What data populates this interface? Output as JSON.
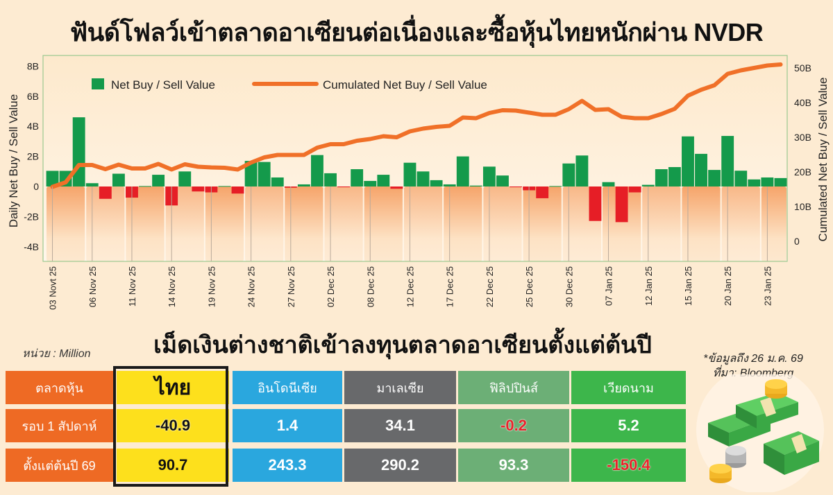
{
  "title": "ฟันด์โฟลว์เข้าตลาดอาเซียนต่อเนื่องและซื้อหุ้นไทยหนักผ่าน NVDR",
  "chart_data": {
    "type": "bar+line",
    "title": "ฟันด์โฟลว์เข้าตลาดอาเซียนต่อเนื่องและซื้อหุ้นไทยหนักผ่าน NVDR",
    "ylabel_left": "Daily Net Buy / Sell Value",
    "ylabel_right": "Cumulated Net Buy / Sell Value",
    "ylim_left": [
      -4,
      8
    ],
    "ylim_right": [
      0,
      50
    ],
    "yticks_left": [
      "-4B",
      "-2B",
      "0",
      "2B",
      "4B",
      "6B",
      "8B"
    ],
    "yticks_left_values": [
      -4,
      -2,
      0,
      2,
      4,
      6,
      8
    ],
    "yticks_right": [
      "0",
      "10B",
      "20B",
      "30B",
      "40B",
      "50B"
    ],
    "yticks_right_values": [
      0,
      10,
      20,
      30,
      40,
      50
    ],
    "legend_placement": "top-left",
    "xtick_labels": [
      "03 Novt 25",
      "06 Nov 25",
      "11 Nov 25",
      "14 Nov 25",
      "19 Nov 25",
      "24 Nov 25",
      "27 Nov 25",
      "02 Dec 25",
      "08 Dec 25",
      "12 Dec 25",
      "17 Dec 25",
      "22 Dec 25",
      "25 Dec 25",
      "30 Dec 25",
      "07 Jan 25",
      "12 Jan 25",
      "15 Jan 25",
      "20 Jan 25",
      "23 Jan 25"
    ],
    "series": [
      {
        "name": "Net Buy / Sell Value",
        "type": "bar",
        "axis": "left",
        "color": "#149a4b",
        "negative_color": "#e61e26",
        "values": [
          1.04,
          1.04,
          4.6,
          0.22,
          -0.82,
          0.85,
          -0.74,
          0.03,
          0.78,
          -1.26,
          1.0,
          -0.33,
          -0.39,
          0.03,
          -0.47,
          1.7,
          1.63,
          0.6,
          -0.08,
          0.14,
          2.09,
          0.88,
          -0.05,
          1.15,
          0.37,
          0.78,
          -0.15,
          1.58,
          1.0,
          0.42,
          0.14,
          2.0,
          0.06,
          1.32,
          0.73,
          -0.05,
          -0.25,
          -0.78,
          0.03,
          1.53,
          2.06,
          -2.29,
          0.29,
          -2.37,
          -0.39,
          0.11,
          1.15,
          1.29,
          3.33,
          2.17,
          1.1,
          3.36,
          1.05,
          0.47,
          0.6,
          0.56
        ]
      },
      {
        "name": "Cumulated Net Buy / Sell Value",
        "type": "line",
        "axis": "right",
        "color": "#f07028",
        "values": [
          15.7,
          17,
          22,
          22,
          20.8,
          22.1,
          21,
          21,
          22.3,
          20.7,
          22.2,
          21.5,
          21.3,
          21.2,
          20.7,
          22.7,
          24.2,
          24.9,
          24.9,
          24.9,
          27,
          28,
          28,
          29,
          29.5,
          30.3,
          30,
          31.7,
          32.5,
          33,
          33.3,
          35.7,
          35.5,
          37,
          37.8,
          37.7,
          37.1,
          36.5,
          36.5,
          38.1,
          40.5,
          37.9,
          38.1,
          35.9,
          35.5,
          35.5,
          36.7,
          38.2,
          42,
          43.7,
          45,
          48.3,
          49.3,
          50,
          50.7,
          51
        ]
      }
    ]
  },
  "subtitle": "เม็ดเงินต่างชาติเข้าลงทุนตลาดอาเซียนตั้งแต่ต้นปี",
  "unit": "หน่วย : Million",
  "note_line1": "*ข้อมูลถึง 26 ม.ค. 69",
  "note_line2": "ที่มา: Bloomberg",
  "table": {
    "header": [
      "ตลาดหุ้น",
      "ไทย",
      "อินโดนีเซีย",
      "มาเลเซีย",
      "ฟิลิปปินส์",
      "เวียดนาม"
    ],
    "rows": [
      {
        "label": "รอบ 1 สัปดาห์",
        "values": [
          "-40.9",
          "1.4",
          "34.1",
          "-0.2",
          "5.2"
        ]
      },
      {
        "label": "ตั้งแต่ต้นปี 69",
        "values": [
          "90.7",
          "243.3",
          "290.2",
          "93.3",
          "-150.4"
        ]
      }
    ],
    "column_colors": [
      "#ee6a24",
      "#fde01c",
      "#2aa7de",
      "#68696b",
      "#6caf76",
      "#3db64b"
    ]
  }
}
